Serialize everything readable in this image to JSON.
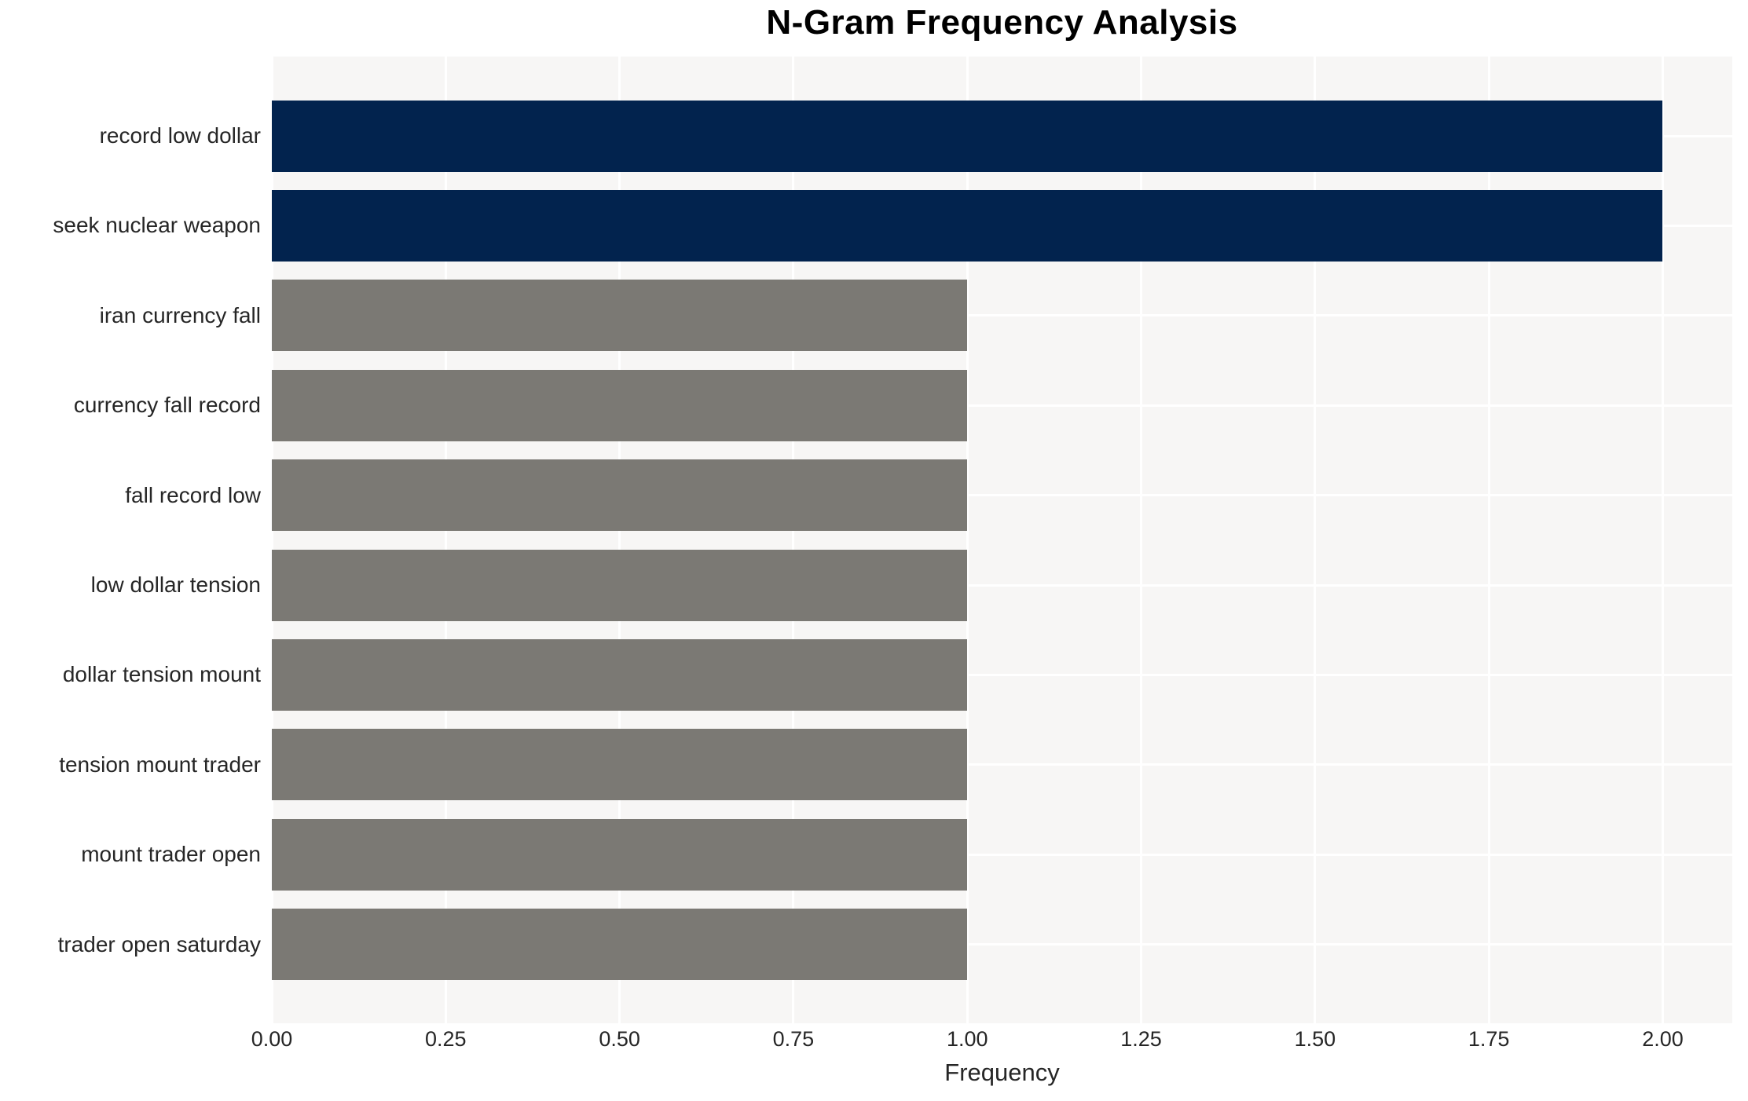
{
  "chart_data": {
    "type": "bar",
    "orientation": "horizontal",
    "title": "N-Gram Frequency Analysis",
    "xlabel": "Frequency",
    "ylabel": "",
    "categories": [
      "record low dollar",
      "seek nuclear weapon",
      "iran currency fall",
      "currency fall record",
      "fall record low",
      "low dollar tension",
      "dollar tension mount",
      "tension mount trader",
      "mount trader open",
      "trader open saturday"
    ],
    "values": [
      2,
      2,
      1,
      1,
      1,
      1,
      1,
      1,
      1,
      1
    ],
    "bar_roles": [
      "highlight",
      "highlight",
      "default",
      "default",
      "default",
      "default",
      "default",
      "default",
      "default",
      "default"
    ],
    "xticks": {
      "labels": [
        "0.00",
        "0.25",
        "0.50",
        "0.75",
        "1.00",
        "1.25",
        "1.50",
        "1.75",
        "2.00"
      ],
      "values": [
        0,
        0.25,
        0.5,
        0.75,
        1.0,
        1.25,
        1.5,
        1.75,
        2.0
      ]
    },
    "xlim": [
      0,
      2.1
    ],
    "grid": true,
    "legend_position": "none",
    "colors": {
      "highlight": "#02234e",
      "default": "#7b7974",
      "plot_background": "#f7f6f5",
      "gridline": "#ffffff",
      "tick_text": "#262626",
      "title_text": "#000000"
    }
  }
}
